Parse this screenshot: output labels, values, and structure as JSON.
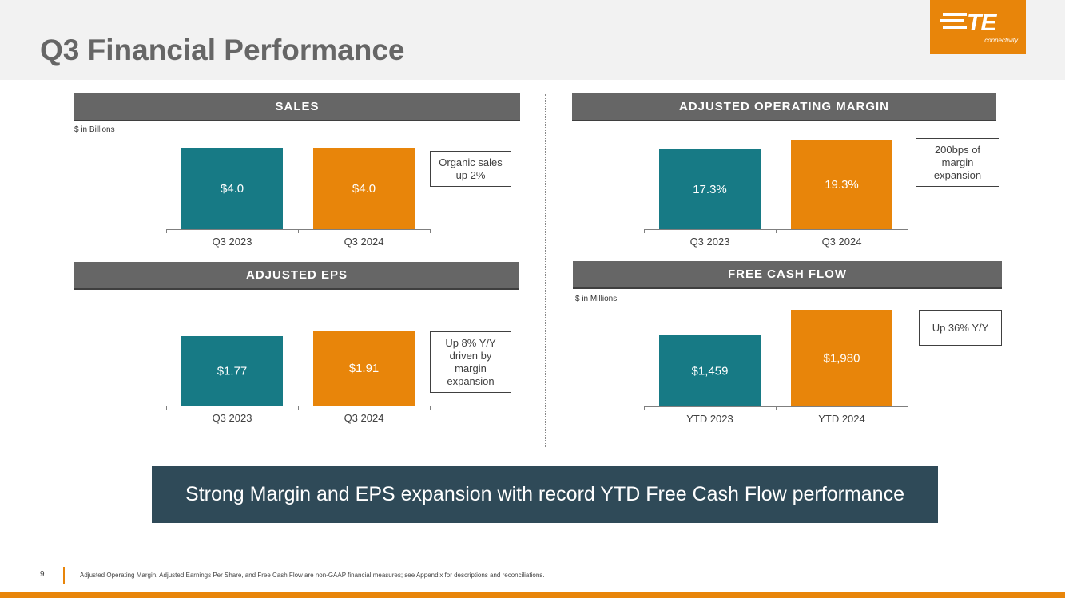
{
  "page": {
    "title": "Q3 Financial Performance",
    "logo_text": "TE",
    "logo_subtext": "connectivity",
    "page_number": "9",
    "footnote": "Adjusted Operating Margin, Adjusted Earnings Per Share, and Free Cash Flow are non-GAAP financial measures; see Appendix for descriptions and reconciliations.",
    "banner": "Strong Margin and EPS expansion with record YTD Free Cash Flow performance"
  },
  "colors": {
    "teal": "#177a85",
    "orange": "#e8850a",
    "header_gray": "#666666",
    "banner": "#2f4a58"
  },
  "panels": {
    "sales": {
      "header": "SALES",
      "unit": "$ in Billions",
      "callout": "Organic sales up 2%"
    },
    "margin": {
      "header": "ADJUSTED OPERATING MARGIN",
      "unit": "",
      "callout": "200bps of margin expansion"
    },
    "eps": {
      "header": "ADJUSTED EPS",
      "unit": "",
      "callout": "Up 8% Y/Y driven by margin expansion"
    },
    "fcf": {
      "header": "FREE CASH FLOW",
      "unit": "$ in Millions",
      "callout": "Up 36% Y/Y"
    }
  },
  "chart_data": [
    {
      "id": "sales",
      "type": "bar",
      "title": "SALES",
      "ylabel": "$ in Billions",
      "categories": [
        "Q3 2023",
        "Q3 2024"
      ],
      "values": [
        4.0,
        4.0
      ],
      "labels": [
        "$4.0",
        "$4.0"
      ],
      "ylim": [
        0,
        4.0
      ]
    },
    {
      "id": "margin",
      "type": "bar",
      "title": "ADJUSTED OPERATING MARGIN",
      "ylabel": "",
      "categories": [
        "Q3 2023",
        "Q3 2024"
      ],
      "values": [
        17.3,
        19.3
      ],
      "labels": [
        "17.3%",
        "19.3%"
      ],
      "ylim": [
        0,
        19.3
      ]
    },
    {
      "id": "eps",
      "type": "bar",
      "title": "ADJUSTED EPS",
      "ylabel": "",
      "categories": [
        "Q3 2023",
        "Q3 2024"
      ],
      "values": [
        1.77,
        1.91
      ],
      "labels": [
        "$1.77",
        "$1.91"
      ],
      "ylim": [
        0,
        1.91
      ]
    },
    {
      "id": "fcf",
      "type": "bar",
      "title": "FREE CASH FLOW",
      "ylabel": "$ in Millions",
      "categories": [
        "YTD 2023",
        "YTD 2024"
      ],
      "values": [
        1459,
        1980
      ],
      "labels": [
        "$1,459",
        "$1,980"
      ],
      "ylim": [
        0,
        1980
      ]
    }
  ]
}
